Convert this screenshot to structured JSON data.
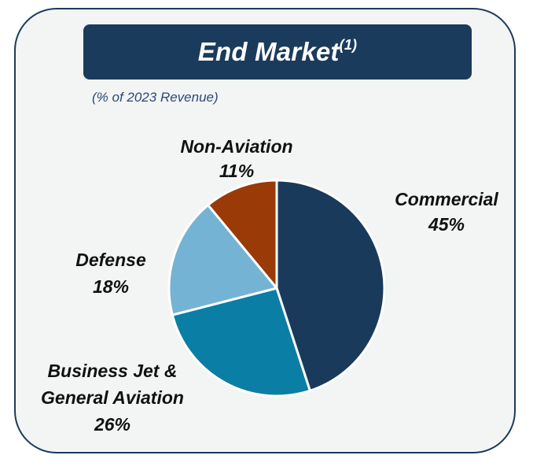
{
  "title": {
    "text": "End Market",
    "superscript": "(1)"
  },
  "subtitle": "(% of 2023 Revenue)",
  "chart_data": {
    "type": "pie",
    "slices": [
      {
        "name": "Commercial",
        "value": 45,
        "label": "45%",
        "color": "#1a3a5c"
      },
      {
        "name": "Business Jet &",
        "name2": "General Aviation",
        "value": 26,
        "label": "26%",
        "color": "#0b7ea5"
      },
      {
        "name": "Defense",
        "value": 18,
        "label": "18%",
        "color": "#74b3d3"
      },
      {
        "name": "Non-Aviation",
        "value": 11,
        "label": "11%",
        "color": "#9a3a06"
      }
    ]
  },
  "colors": {
    "border": "#1c3a5b",
    "card_background": "#f3f4f4",
    "title_background": "#1a3b5c"
  }
}
